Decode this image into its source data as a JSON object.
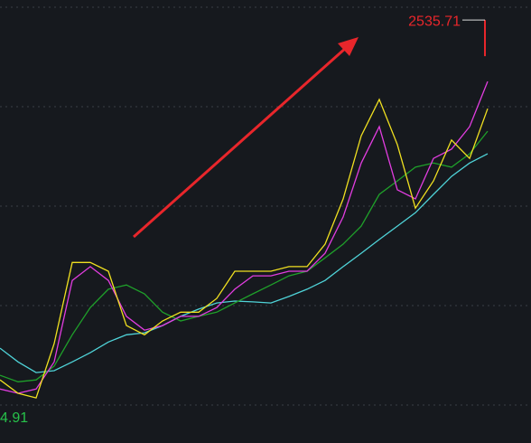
{
  "chart_data": {
    "type": "line",
    "x": [
      0,
      1,
      2,
      3,
      4,
      5,
      6,
      7,
      8,
      9,
      10,
      11,
      12,
      13,
      14,
      15,
      16,
      17,
      18,
      19,
      20,
      21,
      22,
      23,
      24,
      25,
      26,
      27
    ],
    "xlim": [
      0,
      29.4
    ],
    "ylim": [
      1430,
      2588
    ],
    "series": [
      {
        "color": "#4fd3d8",
        "values": [
          1678,
          1642,
          1614,
          1619,
          1642,
          1666,
          1694,
          1713,
          1718,
          1737,
          1761,
          1780,
          1796,
          1801,
          1799,
          1796,
          1813,
          1832,
          1855,
          1891,
          1926,
          1962,
          1997,
          2032,
          2080,
          2127,
          2162,
          2186
        ]
      },
      {
        "color": "#1fa02a",
        "values": [
          1607,
          1590,
          1595,
          1631,
          1713,
          1784,
          1832,
          1843,
          1820,
          1772,
          1749,
          1761,
          1772,
          1796,
          1820,
          1843,
          1867,
          1879,
          1914,
          1950,
          1997,
          2080,
          2115,
          2151,
          2162,
          2151,
          2186,
          2245
        ]
      },
      {
        "color": "#e23de0",
        "values": [
          1571,
          1560,
          1571,
          1642,
          1855,
          1891,
          1855,
          1761,
          1725,
          1737,
          1761,
          1761,
          1784,
          1832,
          1867,
          1867,
          1879,
          1879,
          1926,
          2021,
          2162,
          2257,
          2092,
          2068,
          2174,
          2198,
          2257,
          2375
        ]
      },
      {
        "color": "#f0e020",
        "values": [
          1595,
          1560,
          1548,
          1690,
          1902,
          1902,
          1879,
          1737,
          1713,
          1749,
          1772,
          1772,
          1808,
          1879,
          1879,
          1879,
          1891,
          1891,
          1950,
          2068,
          2233,
          2328,
          2210,
          2044,
          2115,
          2222,
          2174,
          2304
        ]
      }
    ],
    "max_label": {
      "value": 2535.71,
      "label": "2535.71"
    },
    "min_label_text": "4.91"
  }
}
